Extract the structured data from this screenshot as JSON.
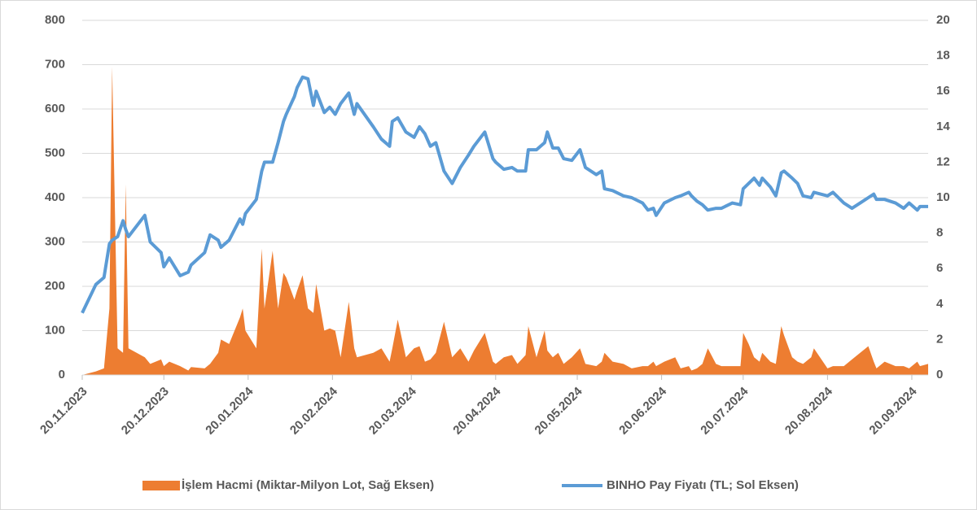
{
  "chart_data": {
    "type": "area-line",
    "x": [
      "20.11.2023",
      "25.11.2023",
      "28.11.2023",
      "30.11.2023",
      "01.12.2023",
      "03.12.2023",
      "05.12.2023",
      "06.12.2023",
      "07.12.2023",
      "13.12.2023",
      "15.12.2023",
      "19.12.2023",
      "20.12.2023",
      "22.12.2023",
      "26.12.2023",
      "29.12.2023",
      "30.12.2023",
      "04.01.2024",
      "06.01.2024",
      "09.01.2024",
      "10.01.2024",
      "13.01.2024",
      "17.01.2024",
      "18.01.2024",
      "19.01.2024",
      "23.01.2024",
      "25.01.2024",
      "26.01.2024",
      "29.01.2024",
      "31.01.2024",
      "02.02.2024",
      "03.02.2024",
      "06.02.2024",
      "07.02.2024",
      "09.02.2024",
      "11.02.2024",
      "13.02.2024",
      "14.02.2024",
      "17.02.2024",
      "19.02.2024",
      "21.02.2024",
      "23.02.2024",
      "26.02.2024",
      "28.02.2024",
      "29.02.2024",
      "06.03.2024",
      "09.03.2024",
      "12.03.2024",
      "13.03.2024",
      "15.03.2024",
      "18.03.2024",
      "21.03.2024",
      "23.03.2024",
      "25.03.2024",
      "27.03.2024",
      "29.03.2024",
      "01.04.2024",
      "04.04.2024",
      "07.04.2024",
      "10.04.2024",
      "12.04.2024",
      "16.04.2024",
      "19.04.2024",
      "20.04.2024",
      "23.04.2024",
      "26.04.2024",
      "28.04.2024",
      "01.05.2024",
      "02.05.2024",
      "05.05.2024",
      "08.05.2024",
      "09.05.2024",
      "11.05.2024",
      "13.05.2024",
      "15.05.2024",
      "18.05.2024",
      "21.05.2024",
      "23.05.2024",
      "27.05.2024",
      "29.05.2024",
      "30.05.2024",
      "02.06.2024",
      "06.06.2024",
      "09.06.2024",
      "13.06.2024",
      "15.06.2024",
      "17.06.2024",
      "18.06.2024",
      "21.06.2024",
      "25.06.2024",
      "27.06.2024",
      "30.06.2024",
      "01.07.2024",
      "03.07.2024",
      "05.07.2024",
      "07.07.2024",
      "10.07.2024",
      "12.07.2024",
      "16.07.2024",
      "19.07.2024",
      "20.07.2024",
      "22.07.2024",
      "24.07.2024",
      "26.07.2024",
      "27.07.2024",
      "30.07.2024",
      "01.08.2024",
      "03.08.2024",
      "04.08.2024",
      "07.08.2024",
      "09.08.2024",
      "11.08.2024",
      "14.08.2024",
      "15.08.2024",
      "20.08.2024",
      "22.08.2024",
      "26.08.2024",
      "29.08.2024",
      "01.09.2024",
      "04.09.2024",
      "06.09.2024",
      "07.09.2024",
      "10.09.2024",
      "14.09.2024",
      "17.09.2024",
      "19.09.2024",
      "22.09.2024",
      "23.09.2024",
      "26.09.2024"
    ],
    "series": [
      {
        "name": "İşlem Hacmi (Miktar-Milyon Lot, Sağ Eksen)",
        "color": "#ed7d31",
        "kind": "area",
        "axis": "y",
        "values": [
          0,
          8,
          15,
          150,
          695,
          60,
          50,
          430,
          60,
          40,
          25,
          35,
          20,
          30,
          20,
          10,
          18,
          15,
          25,
          50,
          80,
          70,
          130,
          150,
          100,
          60,
          285,
          150,
          280,
          150,
          230,
          220,
          170,
          190,
          225,
          150,
          140,
          205,
          100,
          105,
          100,
          40,
          165,
          60,
          40,
          50,
          60,
          30,
          60,
          125,
          40,
          60,
          65,
          30,
          35,
          50,
          120,
          40,
          60,
          30,
          55,
          95,
          30,
          25,
          40,
          45,
          25,
          45,
          110,
          40,
          100,
          55,
          40,
          50,
          25,
          40,
          60,
          25,
          20,
          30,
          50,
          30,
          25,
          15,
          20,
          20,
          30,
          20,
          30,
          40,
          15,
          20,
          10,
          15,
          25,
          60,
          25,
          20,
          20,
          20,
          95,
          70,
          40,
          30,
          50,
          30,
          25,
          110,
          90,
          40,
          30,
          25,
          40,
          60,
          15,
          20,
          20,
          35,
          50,
          65,
          30,
          15,
          30,
          20,
          20,
          15,
          30,
          20,
          25
        ]
      },
      {
        "name": "BINHO Pay Fiyatı (TL; Sol Eksen)",
        "color": "#5b9bd5",
        "kind": "line",
        "axis": "y2",
        "values": [
          3.5,
          5.1,
          5.5,
          7.4,
          7.6,
          7.8,
          8.7,
          8.2,
          7.8,
          9.0,
          7.5,
          6.9,
          6.1,
          6.6,
          5.6,
          5.8,
          6.2,
          6.9,
          7.9,
          7.6,
          7.2,
          7.6,
          8.8,
          8.5,
          9.1,
          9.9,
          11.5,
          12.0,
          12.0,
          13.1,
          14.3,
          14.7,
          15.7,
          16.2,
          16.8,
          16.7,
          15.2,
          16.0,
          14.8,
          15.1,
          14.7,
          15.3,
          15.9,
          14.7,
          15.3,
          14.0,
          13.3,
          12.9,
          14.3,
          14.5,
          13.7,
          13.4,
          14.0,
          13.6,
          12.9,
          13.1,
          11.5,
          10.8,
          11.7,
          12.4,
          12.9,
          13.7,
          12.2,
          12.0,
          11.6,
          11.7,
          11.5,
          11.5,
          12.7,
          12.7,
          13.1,
          13.7,
          12.8,
          12.8,
          12.2,
          12.1,
          12.7,
          11.7,
          11.3,
          11.5,
          10.5,
          10.4,
          10.1,
          10.0,
          9.7,
          9.3,
          9.4,
          9.0,
          9.7,
          10.0,
          10.1,
          10.3,
          10.1,
          9.8,
          9.6,
          9.3,
          9.4,
          9.4,
          9.7,
          9.6,
          10.5,
          10.8,
          11.1,
          10.7,
          11.1,
          10.6,
          10.1,
          11.4,
          11.5,
          11.1,
          10.8,
          10.1,
          10.0,
          10.3,
          10.1,
          10.3,
          9.7,
          9.4,
          9.7,
          10.0,
          10.2,
          9.9,
          9.9,
          9.7,
          9.4,
          9.7,
          9.3,
          9.5,
          9.5
        ]
      }
    ],
    "xlim": [
      "20.11.2023",
      "26.09.2024"
    ],
    "xticks": [
      "20.11.2023",
      "20.12.2023",
      "20.01.2024",
      "20.02.2024",
      "20.03.2024",
      "20.04.2024",
      "20.05.2024",
      "20.06.2024",
      "20.07.2024",
      "20.08.2024",
      "20.09.2024"
    ],
    "ylim": [
      0,
      800
    ],
    "yticks": [
      0,
      100,
      200,
      300,
      400,
      500,
      600,
      700,
      800
    ],
    "y2lim": [
      0,
      20
    ],
    "y2ticks": [
      0,
      2,
      4,
      6,
      8,
      10,
      12,
      14,
      16,
      18,
      20
    ],
    "grid": true,
    "legend": "bottom"
  }
}
